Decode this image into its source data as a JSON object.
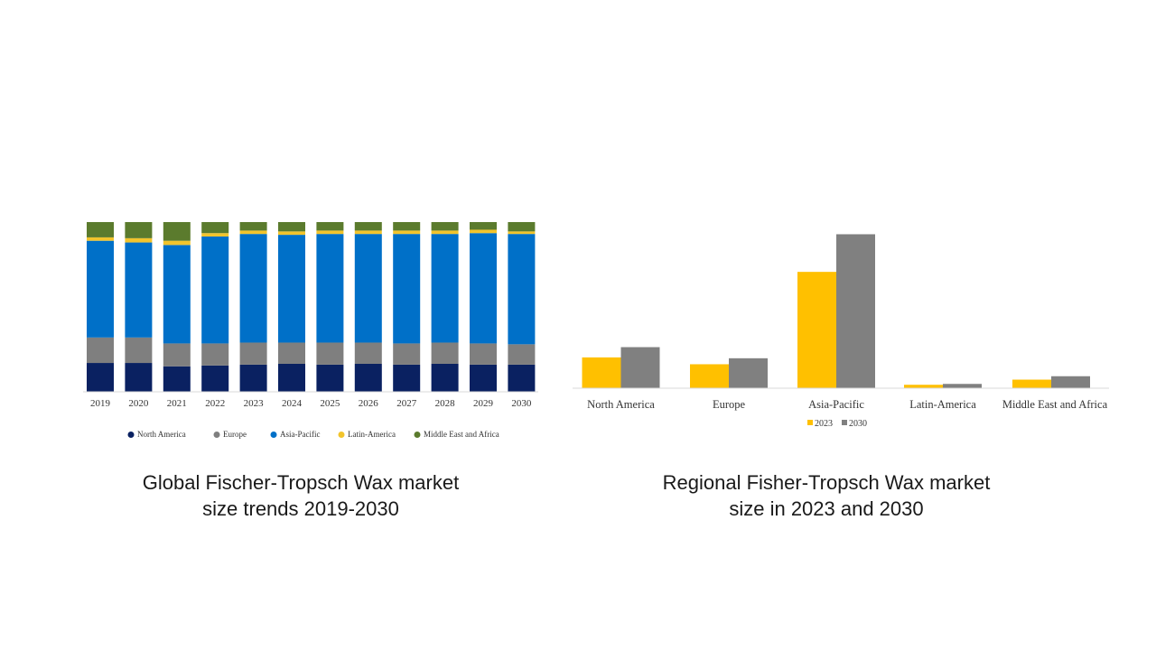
{
  "chart_data": [
    {
      "type": "bar",
      "stacked": true,
      "normalized_percent": true,
      "title": "",
      "categories": [
        "2019",
        "2020",
        "2021",
        "2022",
        "2023",
        "2024",
        "2025",
        "2026",
        "2027",
        "2028",
        "2029",
        "2030"
      ],
      "series": [
        {
          "name": "North America",
          "color": "#0a2161",
          "values": [
            17,
            17,
            15,
            15.5,
            16,
            16.5,
            16,
            16.5,
            16,
            16.5,
            16,
            16
          ]
        },
        {
          "name": "Europe",
          "color": "#7f7f7f",
          "values": [
            15,
            15,
            13.5,
            13,
            13,
            12.5,
            13,
            12.5,
            12.5,
            12.5,
            12.5,
            12
          ]
        },
        {
          "name": "Asia-Pacific",
          "color": "#0070c8",
          "values": [
            57,
            56,
            58,
            63,
            64,
            63.5,
            64,
            64,
            64.5,
            64,
            65,
            65
          ]
        },
        {
          "name": "Latin-America",
          "color": "#f2c42c",
          "values": [
            2,
            2.5,
            2.5,
            2,
            2,
            2,
            2,
            2,
            2,
            2,
            2,
            1.5
          ]
        },
        {
          "name": "Middle East and Africa",
          "color": "#5b7b2d",
          "values": [
            9,
            9.5,
            11,
            6.5,
            5,
            5.5,
            5,
            5,
            5,
            5,
            4.5,
            5.5
          ]
        }
      ],
      "legend_position": "bottom",
      "grid": false,
      "caption": [
        "Global Fischer-Tropsch Wax market",
        "size trends 2019-2030"
      ]
    },
    {
      "type": "bar",
      "title": "",
      "categories": [
        "North America",
        "Europe",
        "Asia-Pacific",
        "Latin-America",
        "Middle East and Africa"
      ],
      "series": [
        {
          "name": "2023",
          "color": "#ffc000",
          "values": [
            18,
            14,
            68,
            2,
            5
          ]
        },
        {
          "name": "2030",
          "color": "#808080",
          "values": [
            24,
            17.5,
            90,
            2.5,
            7
          ]
        }
      ],
      "ylim": [
        0,
        95
      ],
      "legend_position": "bottom",
      "grid": false,
      "caption": [
        "Regional Fisher-Tropsch Wax market",
        "size in 2023 and 2030"
      ]
    }
  ]
}
